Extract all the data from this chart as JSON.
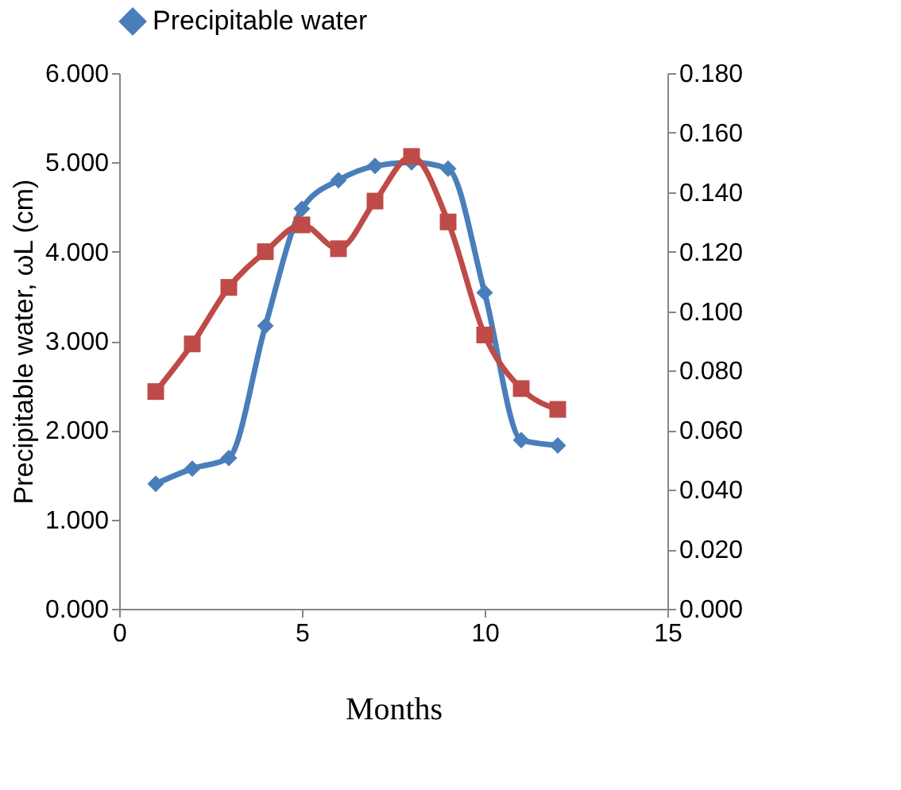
{
  "chart_data": {
    "type": "line",
    "xlabel": "Months",
    "ylabel": "Precipitable water, ωL (cm)",
    "x": [
      1,
      2,
      3,
      4,
      5,
      6,
      7,
      8,
      9,
      10,
      11,
      12
    ],
    "series": [
      {
        "name": "Precipitable water",
        "color": "#4a7ebb",
        "marker": "diamond",
        "values": [
          1.4,
          1.57,
          1.69,
          3.17,
          4.48,
          4.8,
          4.96,
          5.0,
          4.93,
          3.54,
          1.89,
          1.83
        ]
      },
      {
        "color": "#be4b48",
        "marker": "square",
        "axis": "y2",
        "values": [
          0.073,
          0.089,
          0.108,
          0.12,
          0.129,
          0.121,
          0.137,
          0.152,
          0.13,
          0.092,
          0.074,
          0.067
        ]
      }
    ],
    "xlim": [
      0,
      15
    ],
    "xticks": [
      0,
      5,
      10,
      15
    ],
    "ylim": [
      0,
      6
    ],
    "yticks": [
      {
        "value": 0,
        "label": "0.000"
      },
      {
        "value": 1,
        "label": "1.000"
      },
      {
        "value": 2,
        "label": "2.000"
      },
      {
        "value": 3,
        "label": "3.000"
      },
      {
        "value": 4,
        "label": "4.000"
      },
      {
        "value": 5,
        "label": "5.000"
      },
      {
        "value": 6,
        "label": "6.000"
      }
    ],
    "y2lim": [
      0,
      0.18
    ],
    "y2ticks": [
      {
        "value": 0,
        "label": "0.000"
      },
      {
        "value": 0.02,
        "label": "0.020"
      },
      {
        "value": 0.04,
        "label": "0.040"
      },
      {
        "value": 0.06,
        "label": "0.060"
      },
      {
        "value": 0.08,
        "label": "0.080"
      },
      {
        "value": 0.1,
        "label": "0.100"
      },
      {
        "value": 0.12,
        "label": "0.120"
      },
      {
        "value": 0.14,
        "label": "0.140"
      },
      {
        "value": 0.16,
        "label": "0.160"
      },
      {
        "value": 0.18,
        "label": "0.180"
      }
    ],
    "grid": false,
    "legend": "top",
    "line_style": "solid"
  }
}
